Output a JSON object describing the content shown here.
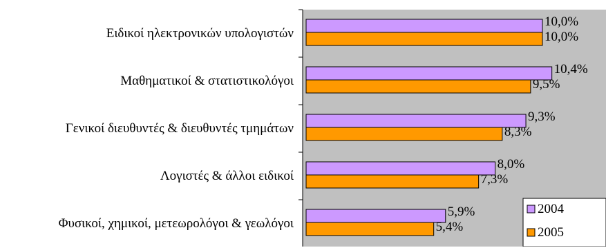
{
  "chart_data": {
    "type": "bar",
    "orientation": "horizontal",
    "categories": [
      "Ειδικοί ηλεκτρονικών υπολογιστών",
      "Μαθηματικοί & στατιστικολόγοι",
      "Γενικοί διευθυντές & διευθυντές τμημάτων",
      "Λογιστές & άλλοι ειδικοί",
      "Φυσικοί, χημικοί, μετεωρολόγοι & γεωλόγοι"
    ],
    "series": [
      {
        "name": "2004",
        "values": [
          10.0,
          10.4,
          9.3,
          8.0,
          5.9
        ],
        "labels": [
          "10,0%",
          "10,4%",
          "9,3%",
          "8,0%",
          "5,9%"
        ],
        "color": "#cc99ff"
      },
      {
        "name": "2005",
        "values": [
          10.0,
          9.5,
          8.3,
          7.3,
          5.4
        ],
        "labels": [
          "10,0%",
          "9,5%",
          "8,3%",
          "7,3%",
          "5,4%"
        ],
        "color": "#ff9900"
      }
    ],
    "xlim": [
      0,
      11.5
    ],
    "legend_position": "bottom-right",
    "plot_background": "#c0c0c0",
    "grid": false
  }
}
